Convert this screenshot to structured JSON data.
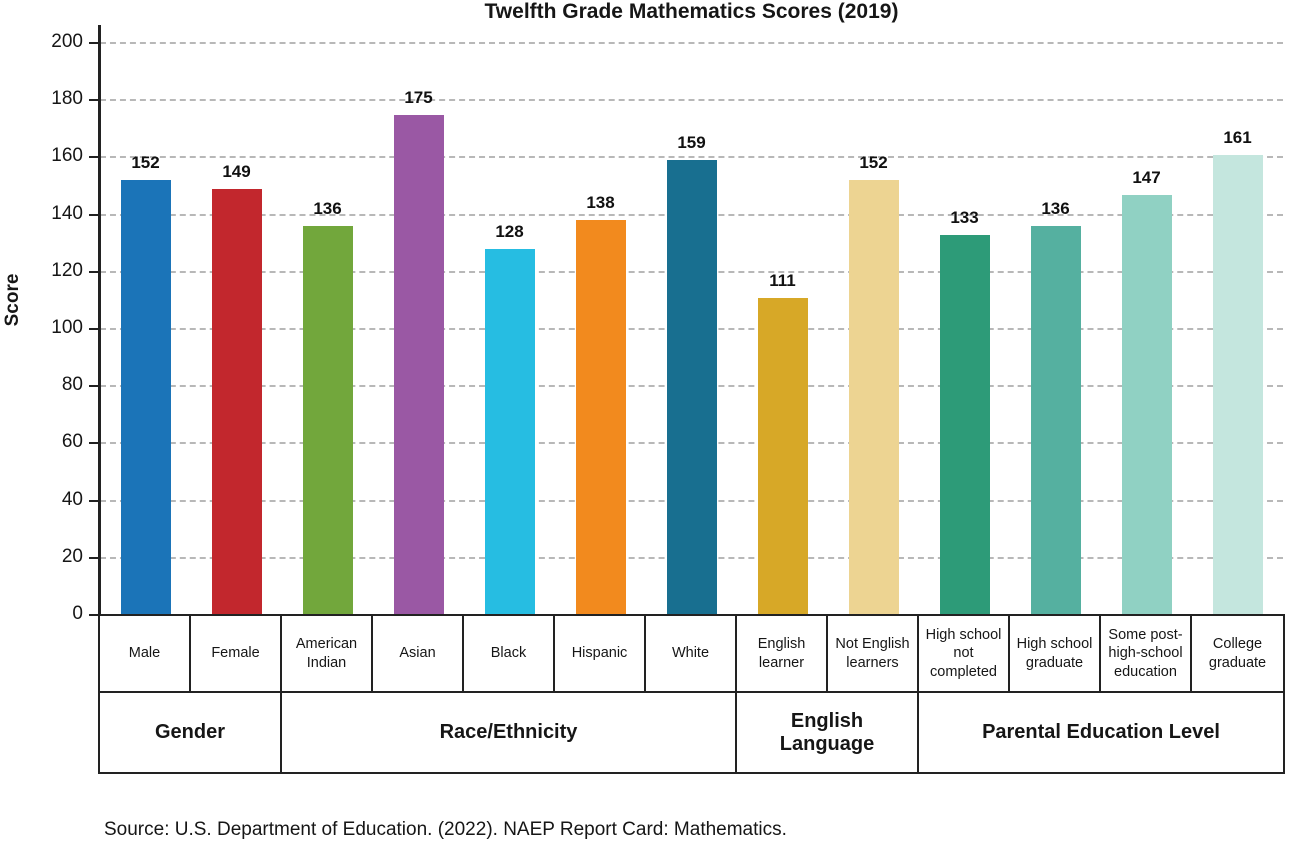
{
  "source": "Source: U.S. Department of Education. (2022). NAEP Report Card: Mathematics.",
  "chart_data": {
    "type": "bar",
    "title": "Twelfth Grade Mathematics Scores (2019)",
    "xlabel": "",
    "ylabel": "Score",
    "ylim": [
      0,
      200
    ],
    "ytick_step": 20,
    "grid": "dashed-horizontal",
    "legend": "none",
    "categories": [
      "Male",
      "Female",
      "American Indian",
      "Asian",
      "Black",
      "Hispanic",
      "White",
      "English learner",
      "Not English learners",
      "High school not completed",
      "High school graduate",
      "Some post-high-school education",
      "College graduate"
    ],
    "values": [
      152,
      149,
      136,
      175,
      128,
      138,
      159,
      111,
      152,
      133,
      136,
      147,
      161
    ],
    "colors": [
      "#1b74b8",
      "#c2272d",
      "#72a73c",
      "#9a58a4",
      "#26bde2",
      "#f28a1e",
      "#186f90",
      "#d7a827",
      "#edd492",
      "#2d9b78",
      "#55b0a0",
      "#90d1c3",
      "#c4e6de"
    ],
    "groups": [
      {
        "label": "Gender",
        "span": 2
      },
      {
        "label": "Race/Ethnicity",
        "span": 5
      },
      {
        "label": "English Language",
        "span": 2
      },
      {
        "label": "Parental Education Level",
        "span": 4
      }
    ]
  }
}
